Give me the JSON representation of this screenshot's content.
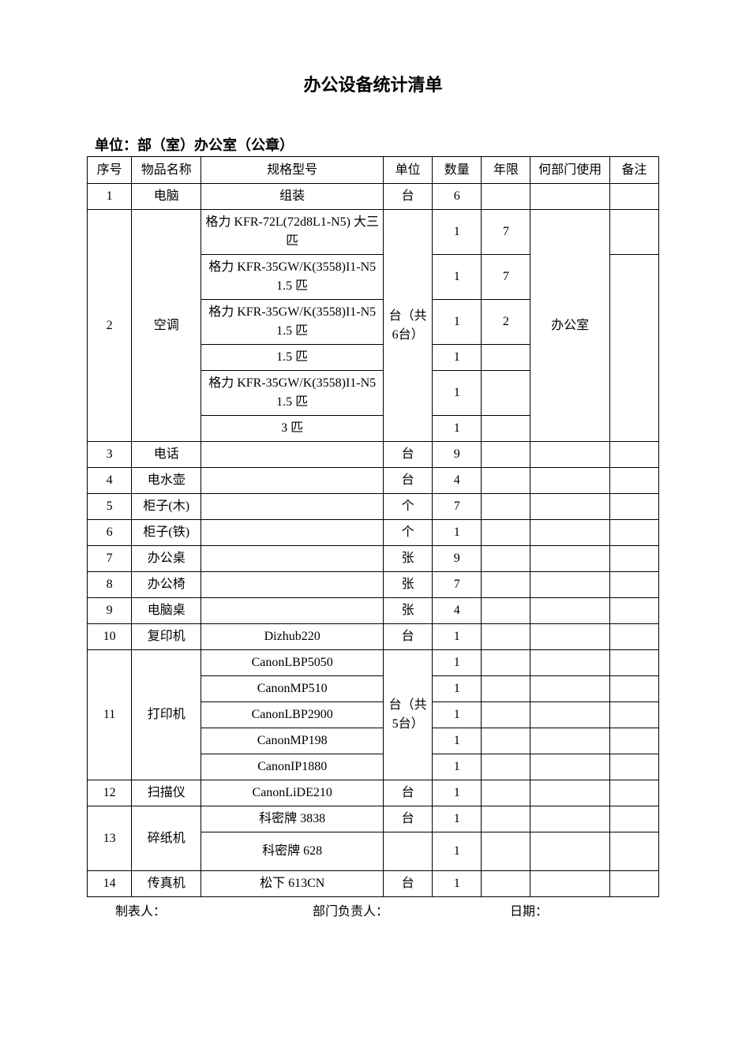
{
  "title": "办公设备统计清单",
  "unit_line": "单位：部（室）办公室（公章）",
  "columns": [
    "序号",
    "物品名称",
    "规格型号",
    "单位",
    "数量",
    "年限",
    "何部门使用",
    "备注"
  ],
  "footer": {
    "maker": "制表人：",
    "head": "部门负责人：",
    "date": "日期："
  },
  "rows": {
    "r1": {
      "seq": "1",
      "name": "电脑",
      "spec": "组装",
      "unit": "台",
      "qty": "6",
      "year": "",
      "dept": "",
      "note": ""
    },
    "r2": {
      "seq": "2",
      "name": "空调",
      "unit": "台（共 6台）",
      "dept": "办公室",
      "note": "",
      "specs": {
        "a": "格力 KFR-72L(72d8L1-N5) 大三匹",
        "b": "格力 KFR-35GW/K(3558)I1-N5 1.5 匹",
        "c": "格力 KFR-35GW/K(3558)I1-N5 1.5 匹",
        "d": "1.5 匹",
        "e": "格力 KFR-35GW/K(3558)I1-N5 1.5 匹",
        "f": "3 匹"
      },
      "qtys": {
        "a": "1",
        "b": "1",
        "c": "1",
        "d": "1",
        "e": "1",
        "f": "1"
      },
      "years": {
        "a": "7",
        "b": "7",
        "c": "2",
        "d": "",
        "e": "",
        "f": ""
      },
      "notes": {
        "a": ""
      }
    },
    "r3": {
      "seq": "3",
      "name": "电话",
      "spec": "",
      "unit": "台",
      "qty": "9",
      "year": "",
      "dept": "",
      "note": ""
    },
    "r4": {
      "seq": "4",
      "name": "电水壶",
      "spec": "",
      "unit": "台",
      "qty": "4",
      "year": "",
      "dept": "",
      "note": ""
    },
    "r5": {
      "seq": "5",
      "name": "柜子(木)",
      "spec": "",
      "unit": "个",
      "qty": "7",
      "year": "",
      "dept": "",
      "note": ""
    },
    "r6": {
      "seq": "6",
      "name": "柜子(铁)",
      "spec": "",
      "unit": "个",
      "qty": "1",
      "year": "",
      "dept": "",
      "note": ""
    },
    "r7": {
      "seq": "7",
      "name": "办公桌",
      "spec": "",
      "unit": "张",
      "qty": "9",
      "year": "",
      "dept": "",
      "note": ""
    },
    "r8": {
      "seq": "8",
      "name": "办公椅",
      "spec": "",
      "unit": "张",
      "qty": "7",
      "year": "",
      "dept": "",
      "note": ""
    },
    "r9": {
      "seq": "9",
      "name": "电脑桌",
      "spec": "",
      "unit": "张",
      "qty": "4",
      "year": "",
      "dept": "",
      "note": ""
    },
    "r10": {
      "seq": "10",
      "name": "复印机",
      "spec": "Dizhub220",
      "unit": "台",
      "qty": "1",
      "year": "",
      "dept": "",
      "note": ""
    },
    "r11": {
      "seq": "11",
      "name": "打印机",
      "unit": "台（共 5台）",
      "dept": "",
      "note": "",
      "specs": {
        "a": "CanonLBP5050",
        "b": "CanonMP510",
        "c": "CanonLBP2900",
        "d": "CanonMP198",
        "e": "CanonIP1880"
      },
      "qtys": {
        "a": "1",
        "b": "1",
        "c": "1",
        "d": "1",
        "e": "1"
      }
    },
    "r12": {
      "seq": "12",
      "name": "扫描仪",
      "spec": "CanonLiDE210",
      "unit": "台",
      "qty": "1",
      "year": "",
      "dept": "",
      "note": ""
    },
    "r13": {
      "seq": "13",
      "name": "碎纸机",
      "specs": {
        "a": "科密牌 3838",
        "b": "科密牌 628"
      },
      "unit": "台",
      "qtys": {
        "a": "1",
        "b": "1"
      }
    },
    "r14": {
      "seq": "14",
      "name": "传真机",
      "spec": "松下 613CN",
      "unit": "台",
      "qty": "1",
      "year": "",
      "dept": "",
      "note": ""
    }
  }
}
